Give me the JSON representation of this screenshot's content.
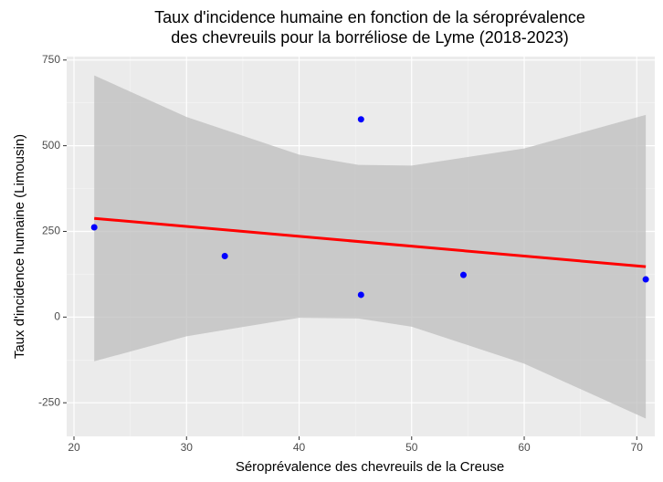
{
  "chart_data": {
    "type": "scatter",
    "title": [
      "Taux d'incidence humaine en fonction de la séroprévalence",
      "des chevreuils pour la borréliose de Lyme (2018-2023)"
    ],
    "x_label": "Séroprévalence des chevreuils de la Creuse",
    "y_label": "Taux d'incidence humaine (Limousin)",
    "x": [
      21.8,
      33.4,
      45.5,
      45.5,
      54.6,
      70.8
    ],
    "values": [
      262,
      178,
      577,
      65,
      123,
      110
    ],
    "color": "#0000ff",
    "fit": {
      "color": "#ff0000",
      "x": [
        21.8,
        70.8
      ],
      "values": [
        288,
        147
      ]
    },
    "band": {
      "color": "#bdbdbd",
      "x": [
        21.8,
        30,
        40,
        45.27,
        50,
        60,
        70.8
      ],
      "upper": [
        705,
        584,
        474,
        444,
        442,
        492,
        590
      ],
      "lower": [
        -129,
        -56,
        -2,
        -4,
        -28,
        -136,
        -296
      ]
    },
    "xlim": [
      19.35,
      71.6
    ],
    "ylim": [
      -348,
      760
    ],
    "xticks": [
      20,
      30,
      40,
      50,
      60,
      70
    ],
    "yticks": [
      -250,
      0,
      250,
      500,
      750
    ],
    "grid": true
  }
}
